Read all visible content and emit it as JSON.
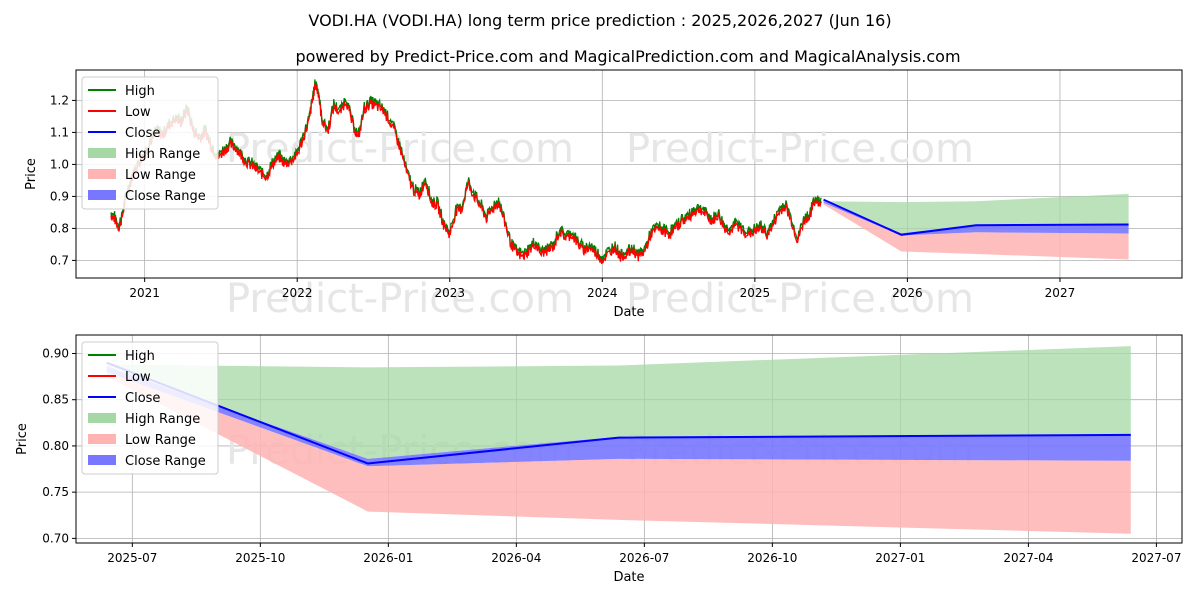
{
  "title": "VODI.HA (VODI.HA) long term price prediction : 2025,2026,2027 (Jun 16)",
  "subtitle": "powered by Predict-Price.com and MagicalPrediction.com and MagicalAnalysis.com",
  "watermark": "Predict-Price.com",
  "colors": {
    "high": "#008000",
    "low": "#ff0000",
    "close": "#0000ff",
    "high_range": "#a6d8a6",
    "low_range": "#ffb3b3",
    "close_range": "#7777ff"
  },
  "chart_data": [
    {
      "id": "top",
      "type": "line",
      "title": "",
      "xlabel": "Date",
      "ylabel": "Price",
      "xlim": [
        2020.55,
        2027.8
      ],
      "ylim": [
        0.645,
        1.295
      ],
      "x_ticks": [
        {
          "v": 2021.0,
          "label": "2021"
        },
        {
          "v": 2022.0,
          "label": "2022"
        },
        {
          "v": 2023.0,
          "label": "2023"
        },
        {
          "v": 2024.0,
          "label": "2024"
        },
        {
          "v": 2025.0,
          "label": "2025"
        },
        {
          "v": 2026.0,
          "label": "2026"
        },
        {
          "v": 2027.0,
          "label": "2027"
        }
      ],
      "y_ticks": [
        {
          "v": 0.7,
          "label": "0.7"
        },
        {
          "v": 0.8,
          "label": "0.8"
        },
        {
          "v": 0.9,
          "label": "0.9"
        },
        {
          "v": 1.0,
          "label": "1.0"
        },
        {
          "v": 1.1,
          "label": "1.1"
        },
        {
          "v": 1.2,
          "label": "1.2"
        }
      ],
      "grid": true,
      "legend": {
        "position": "top-left",
        "entries": [
          "High",
          "Low",
          "Close",
          "High Range",
          "Low Range",
          "Close Range"
        ]
      },
      "history_x": [
        2020.78,
        2020.8,
        2020.83,
        2020.85,
        2020.88,
        2020.92,
        2020.96,
        2021.0,
        2021.04,
        2021.08,
        2021.12,
        2021.16,
        2021.2,
        2021.24,
        2021.28,
        2021.32,
        2021.36,
        2021.4,
        2021.44,
        2021.48,
        2021.52,
        2021.56,
        2021.6,
        2021.64,
        2021.68,
        2021.72,
        2021.76,
        2021.8,
        2021.84,
        2021.88,
        2021.92,
        2021.96,
        2022.0,
        2022.04,
        2022.08,
        2022.1,
        2022.12,
        2022.14,
        2022.16,
        2022.2,
        2022.24,
        2022.28,
        2022.32,
        2022.36,
        2022.4,
        2022.44,
        2022.48,
        2022.52,
        2022.56,
        2022.6,
        2022.64,
        2022.68,
        2022.72,
        2022.76,
        2022.8,
        2022.84,
        2022.88,
        2022.92,
        2022.96,
        2023.0,
        2023.04,
        2023.08,
        2023.12,
        2023.16,
        2023.2,
        2023.24,
        2023.28,
        2023.32,
        2023.36,
        2023.4,
        2023.44,
        2023.48,
        2023.52,
        2023.56,
        2023.6,
        2023.64,
        2023.68,
        2023.72,
        2023.76,
        2023.8,
        2023.84,
        2023.88,
        2023.92,
        2023.96,
        2024.0,
        2024.04,
        2024.08,
        2024.12,
        2024.16,
        2024.2,
        2024.24,
        2024.28,
        2024.32,
        2024.36,
        2024.4,
        2024.44,
        2024.48,
        2024.52,
        2024.56,
        2024.6,
        2024.64,
        2024.68,
        2024.72,
        2024.76,
        2024.8,
        2024.84,
        2024.88,
        2024.92,
        2024.96,
        2025.0,
        2025.04,
        2025.08,
        2025.12,
        2025.16,
        2025.2,
        2025.24,
        2025.28,
        2025.32,
        2025.36,
        2025.4,
        2025.44
      ],
      "history_close": [
        0.84,
        0.83,
        0.8,
        0.83,
        0.9,
        0.96,
        1.0,
        1.03,
        1.07,
        1.1,
        1.09,
        1.12,
        1.14,
        1.13,
        1.17,
        1.1,
        1.08,
        1.1,
        1.05,
        1.02,
        1.04,
        1.06,
        1.05,
        1.02,
        1.0,
        0.99,
        0.97,
        0.96,
        1.0,
        1.02,
        1.0,
        1.01,
        1.03,
        1.08,
        1.14,
        1.2,
        1.25,
        1.22,
        1.14,
        1.1,
        1.18,
        1.16,
        1.2,
        1.13,
        1.08,
        1.17,
        1.19,
        1.18,
        1.17,
        1.14,
        1.1,
        1.04,
        0.97,
        0.92,
        0.9,
        0.95,
        0.88,
        0.87,
        0.81,
        0.78,
        0.85,
        0.86,
        0.94,
        0.9,
        0.87,
        0.83,
        0.86,
        0.88,
        0.82,
        0.75,
        0.72,
        0.71,
        0.73,
        0.75,
        0.72,
        0.73,
        0.74,
        0.79,
        0.77,
        0.78,
        0.75,
        0.73,
        0.74,
        0.72,
        0.7,
        0.72,
        0.74,
        0.71,
        0.72,
        0.73,
        0.71,
        0.73,
        0.78,
        0.8,
        0.79,
        0.78,
        0.8,
        0.82,
        0.83,
        0.85,
        0.86,
        0.84,
        0.82,
        0.84,
        0.8,
        0.79,
        0.81,
        0.79,
        0.78,
        0.79,
        0.8,
        0.78,
        0.81,
        0.85,
        0.87,
        0.82,
        0.76,
        0.82,
        0.84,
        0.89,
        0.87
      ],
      "prediction_x": [
        2025.45,
        2025.96,
        2026.45,
        2027.45
      ],
      "prediction_close": [
        0.89,
        0.78,
        0.81,
        0.812
      ],
      "high_range": [
        0.885,
        0.882,
        0.885,
        0.908
      ],
      "low_range": [
        0.875,
        0.728,
        0.72,
        0.703
      ],
      "close_range_upper": [
        0.885,
        0.785,
        0.81,
        0.812
      ],
      "close_range_lower": [
        0.88,
        0.778,
        0.788,
        0.784
      ]
    },
    {
      "id": "bottom",
      "type": "line",
      "title": "",
      "xlabel": "Date",
      "ylabel": "Price",
      "xlim": [
        2025.39,
        2027.55
      ],
      "ylim": [
        0.695,
        0.92
      ],
      "x_ticks": [
        {
          "v": 2025.5,
          "label": "2025-07"
        },
        {
          "v": 2025.75,
          "label": "2025-10"
        },
        {
          "v": 2026.0,
          "label": "2026-01"
        },
        {
          "v": 2026.25,
          "label": "2026-04"
        },
        {
          "v": 2026.5,
          "label": "2026-07"
        },
        {
          "v": 2026.75,
          "label": "2026-10"
        },
        {
          "v": 2027.0,
          "label": "2027-01"
        },
        {
          "v": 2027.25,
          "label": "2027-04"
        },
        {
          "v": 2027.5,
          "label": "2027-07"
        }
      ],
      "y_ticks": [
        {
          "v": 0.7,
          "label": "0.70"
        },
        {
          "v": 0.75,
          "label": "0.75"
        },
        {
          "v": 0.8,
          "label": "0.80"
        },
        {
          "v": 0.85,
          "label": "0.85"
        },
        {
          "v": 0.9,
          "label": "0.90"
        }
      ],
      "grid": true,
      "legend": {
        "position": "top-left",
        "entries": [
          "High",
          "Low",
          "Close",
          "High Range",
          "Low Range",
          "Close Range"
        ]
      },
      "prediction_x": [
        2025.45,
        2025.96,
        2026.45,
        2027.45
      ],
      "prediction_close": [
        0.89,
        0.781,
        0.809,
        0.812
      ],
      "high_range": [
        0.888,
        0.885,
        0.887,
        0.908
      ],
      "low_range": [
        0.875,
        0.729,
        0.72,
        0.705
      ],
      "close_range_upper": [
        0.886,
        0.786,
        0.81,
        0.812
      ],
      "close_range_lower": [
        0.88,
        0.778,
        0.786,
        0.784
      ]
    }
  ]
}
